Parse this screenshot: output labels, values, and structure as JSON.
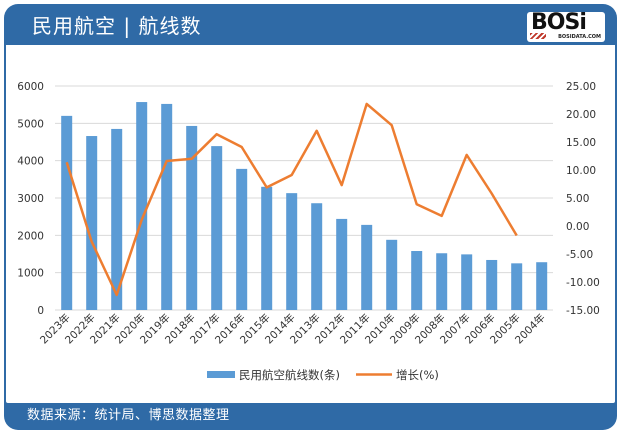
{
  "header": {
    "title": "民用航空 | 航线数",
    "logo_text": "BOSi",
    "logo_sub": "BOSIDATA.COM"
  },
  "footer": {
    "source": "数据来源：统计局、博思数据整理"
  },
  "colors": {
    "frame": "#2f6aa6",
    "bar": "#5b9bd5",
    "line": "#ed7d31",
    "grid": "#d9d9d9"
  },
  "chart_data": {
    "type": "bar+line",
    "title": "民用航空 | 航线数",
    "categories": [
      "2023年",
      "2022年",
      "2021年",
      "2020年",
      "2019年",
      "2018年",
      "2017年",
      "2016年",
      "2015年",
      "2014年",
      "2013年",
      "2012年",
      "2011年",
      "2010年",
      "2009年",
      "2008年",
      "2007年",
      "2006年",
      "2005年",
      "2004年"
    ],
    "series": [
      {
        "name": "民用航空航线数(条)",
        "type": "bar",
        "axis": "left",
        "values": [
          5200,
          4660,
          4850,
          5570,
          5520,
          4930,
          4390,
          3780,
          3300,
          3130,
          2860,
          2440,
          2280,
          1880,
          1580,
          1520,
          1490,
          1340,
          1250,
          1280
        ]
      },
      {
        "name": "增长(%)",
        "type": "line",
        "axis": "right",
        "values": [
          11.4,
          -2.8,
          -12.3,
          1.1,
          11.6,
          12.0,
          16.4,
          14.1,
          6.9,
          9.1,
          17.0,
          7.3,
          21.8,
          18.0,
          3.9,
          1.8,
          12.7,
          5.8,
          -1.7,
          null
        ]
      }
    ],
    "left_axis": {
      "min": 0,
      "max": 6000,
      "step": 1000,
      "ticks": [
        "0",
        "1000",
        "2000",
        "3000",
        "4000",
        "5000",
        "6000"
      ]
    },
    "right_axis": {
      "min": -15,
      "max": 25,
      "step": 5,
      "ticks": [
        "-15.00",
        "-10.00",
        "-5.00",
        "0.00",
        "5.00",
        "10.00",
        "15.00",
        "20.00",
        "25.00"
      ]
    },
    "xlabel": "",
    "ylabel": "",
    "grid": true,
    "legend_position": "bottom"
  }
}
